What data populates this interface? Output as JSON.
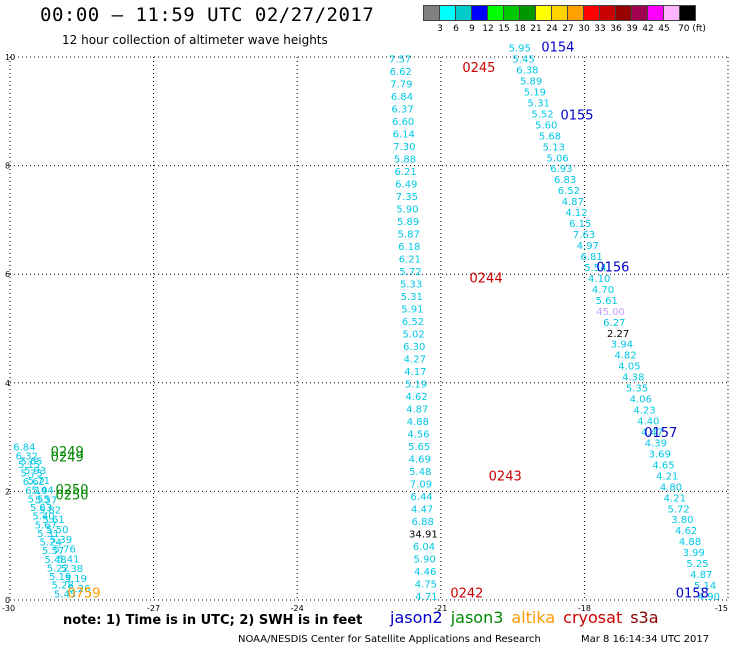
{
  "header": {
    "title": "00:00 – 11:59 UTC 02/27/2017",
    "subtitle": "12 hour collection of altimeter wave heights"
  },
  "colorbar": {
    "boxes": [
      "#808080",
      "#00ffff",
      "#00cccc",
      "#0000ff",
      "#00ff00",
      "#00c800",
      "#009600",
      "#ffff00",
      "#ffd200",
      "#ffa000",
      "#ff0000",
      "#c80000",
      "#960000",
      "#a00050",
      "#ff00ff",
      "#ffb4ff",
      "#000000"
    ],
    "labels": [
      "3",
      "6",
      "9",
      "12",
      "15",
      "18",
      "21",
      "24",
      "27",
      "30",
      "33",
      "36",
      "39",
      "42",
      "45",
      "70 (ft)"
    ]
  },
  "map": {
    "lon_range": [
      -30,
      -15
    ],
    "lat_range": [
      0,
      10
    ],
    "x_ticks": [
      "-30",
      "-27",
      "-24",
      "-21",
      "-18",
      "-15"
    ],
    "y_ticks": [
      "0",
      "2",
      "4",
      "6",
      "8",
      "10"
    ],
    "grid": "dotted"
  },
  "colors": {
    "jason2": "#0000cc",
    "jason3": "#008800",
    "altika": "#ff9900",
    "cryosat": "#cc0000",
    "s3a": "#880000",
    "swh_cyan": "#00c8e6",
    "swh_lavender": "#c8a0ff",
    "swh_dark": "#000000"
  },
  "passes": [
    {
      "label": "0245",
      "lon": -20.55,
      "lat": 9.72,
      "sat": "cryosat"
    },
    {
      "label": "0244",
      "lon": -20.4,
      "lat": 5.85,
      "sat": "cryosat"
    },
    {
      "label": "0243",
      "lon": -20.0,
      "lat": 2.2,
      "sat": "cryosat"
    },
    {
      "label": "0242",
      "lon": -20.8,
      "lat": 0.05,
      "sat": "cryosat"
    },
    {
      "label": "0154",
      "lon": -18.9,
      "lat": 10.1,
      "sat": "jason2"
    },
    {
      "label": "0155",
      "lon": -18.5,
      "lat": 8.85,
      "sat": "jason2"
    },
    {
      "label": "0156",
      "lon": -17.75,
      "lat": 6.05,
      "sat": "jason2"
    },
    {
      "label": "0157",
      "lon": -16.75,
      "lat": 3.0,
      "sat": "jason2"
    },
    {
      "label": "0158",
      "lon": -15.4,
      "lat": 0.05,
      "sat": "jason2"
    },
    {
      "label": "0249",
      "lon": -29.15,
      "lat": 2.65,
      "sat": "jason3"
    },
    {
      "label": "0249",
      "lon": -29.15,
      "lat": 2.55,
      "sat": "jason3"
    },
    {
      "label": "0250",
      "lon": -29.05,
      "lat": 1.95,
      "sat": "jason3"
    },
    {
      "label": "0250",
      "lon": -29.05,
      "lat": 1.85,
      "sat": "jason3"
    },
    {
      "label": "0759",
      "lon": -28.8,
      "lat": 0.05,
      "sat": "altika"
    }
  ],
  "tracks": [
    {
      "name": "cryosat-main",
      "start": [
        -21.85,
        9.9
      ],
      "end": [
        -21.3,
        0.0
      ],
      "values": [
        "7.57",
        "6.62",
        "7.79",
        "6.84",
        "6.37",
        "6.60",
        "6.14",
        "7.30",
        "5.88",
        "6.21",
        "6.49",
        "7.35",
        "5.90",
        "5.89",
        "5.87",
        "6.18",
        "6.21",
        "5.72",
        "5.33",
        "5.31",
        "5.91",
        "6.52",
        "5.02",
        "6.30",
        "4.27",
        "4.17",
        "5.19",
        "4.62",
        "4.87",
        "4.88",
        "4.56",
        "5.65",
        "4.69",
        "5.48",
        "7.09",
        "6.44",
        "4.47",
        "6.88",
        "34.91",
        "6.04",
        "5.90",
        "4.46",
        "4.75",
        "4.71"
      ],
      "color_overrides": {
        "38": "dark"
      }
    },
    {
      "name": "jason2-main",
      "start": [
        -19.35,
        10.1
      ],
      "end": [
        -15.4,
        0.0
      ],
      "values": [
        "5.95",
        "5.45",
        "6.38",
        "5.89",
        "5.19",
        "5.31",
        "5.52",
        "5.60",
        "5.68",
        "5.13",
        "5.06",
        "6.93",
        "6.83",
        "6.52",
        "4.87",
        "4.12",
        "6.15",
        "7.63",
        "4.97",
        "6.81",
        "5.54",
        "4.10",
        "4.70",
        "5.61",
        "45.00",
        "6.27",
        "2.27",
        "3.94",
        "4.82",
        "4.05",
        "4.38",
        "5.35",
        "4.06",
        "4.23",
        "4.40",
        "4.47",
        "4.39",
        "3.69",
        "4.65",
        "4.21",
        "4.80",
        "4.21",
        "5.72",
        "3.80",
        "4.62",
        "4.88",
        "3.99",
        "5.25",
        "4.87",
        "5.14",
        "4.90"
      ],
      "color_overrides": {
        "24": "lavender",
        "26": "dark"
      }
    },
    {
      "name": "west-track-1",
      "start": [
        -29.7,
        2.75
      ],
      "end": [
        -28.85,
        0.05
      ],
      "values": [
        "6.84",
        "6.32",
        "5.15",
        "5.73",
        "6.62",
        "6.19",
        "5.55",
        "5.83",
        "5.40",
        "5.67",
        "5.31",
        "5.24",
        "5.57",
        "5.48",
        "5.22",
        "5.19",
        "5.28",
        "5.45"
      ],
      "color_overrides": {}
    },
    {
      "name": "west-track-2",
      "start": [
        -29.55,
        2.5
      ],
      "end": [
        -28.55,
        0.15
      ],
      "values": [
        "5.65",
        "5.93",
        "5.71",
        "5.44",
        "5.37",
        "5.82",
        "5.61",
        "5.50",
        "5.39",
        "5.76",
        "5.41",
        "5.38",
        "5.19",
        "5.26"
      ],
      "color_overrides": {}
    }
  ],
  "footer": {
    "note": "note:  1) Time is in UTC;  2) SWH is in feet",
    "sat_labels": {
      "jason2": "jason2",
      "jason3": "jason3",
      "altika": "altika",
      "cryosat": "cryosat",
      "s3a": "s3a"
    },
    "credit": "NOAA/NESDIS Center for Satellite Applications and Research",
    "generated": "Mar  8 16:14:34 UTC 2017"
  }
}
